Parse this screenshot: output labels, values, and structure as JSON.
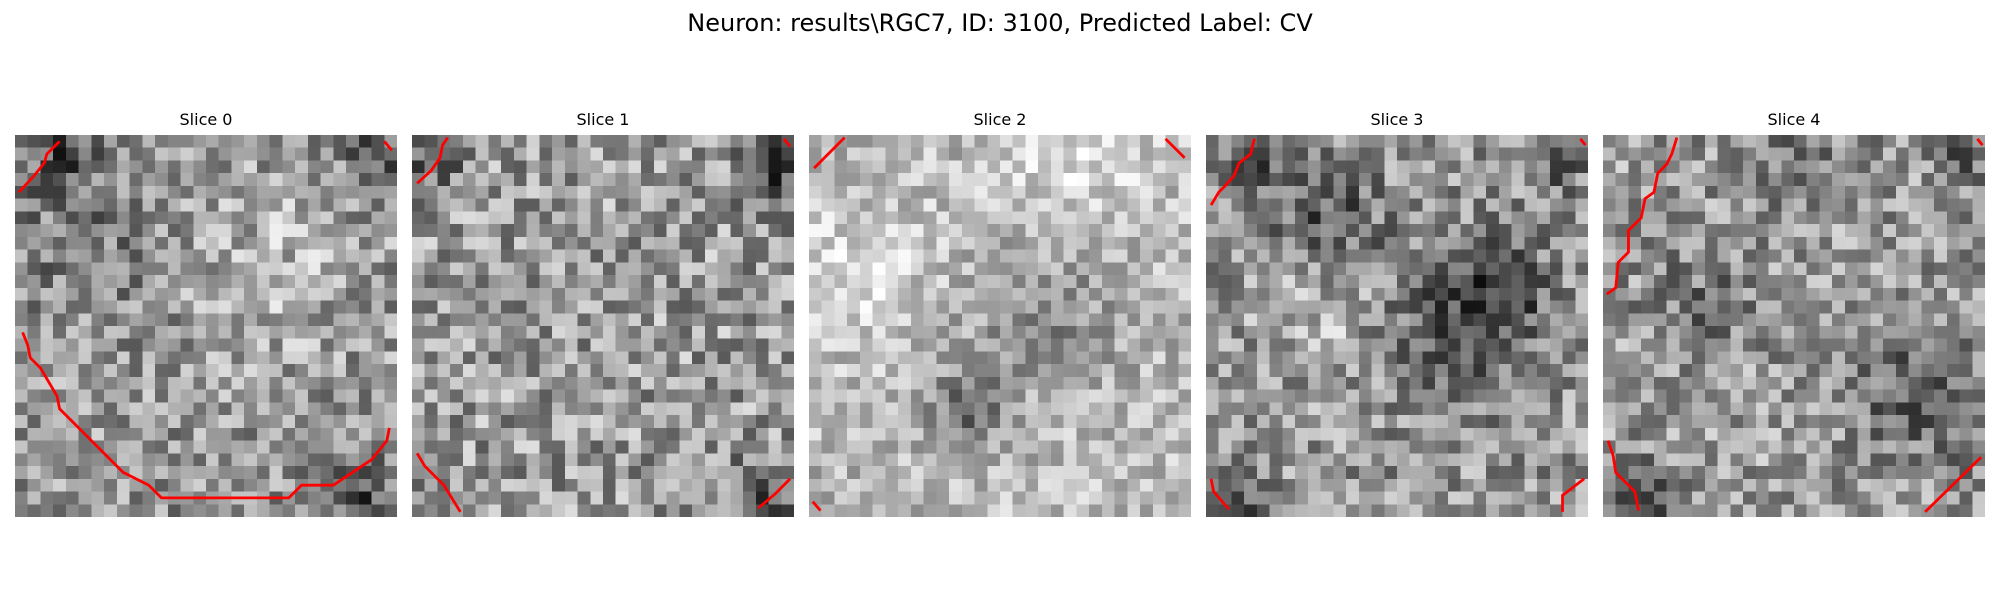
{
  "figure": {
    "title": "Neuron: results\\RGC7, ID: 3100, Predicted Label: CV"
  },
  "slices": [
    {
      "title": "Slice 0"
    },
    {
      "title": "Slice 1"
    },
    {
      "title": "Slice 2"
    },
    {
      "title": "Slice 3"
    },
    {
      "title": "Slice 4"
    }
  ],
  "colors": {
    "contour": "#ff0000",
    "background": "#ffffff"
  }
}
